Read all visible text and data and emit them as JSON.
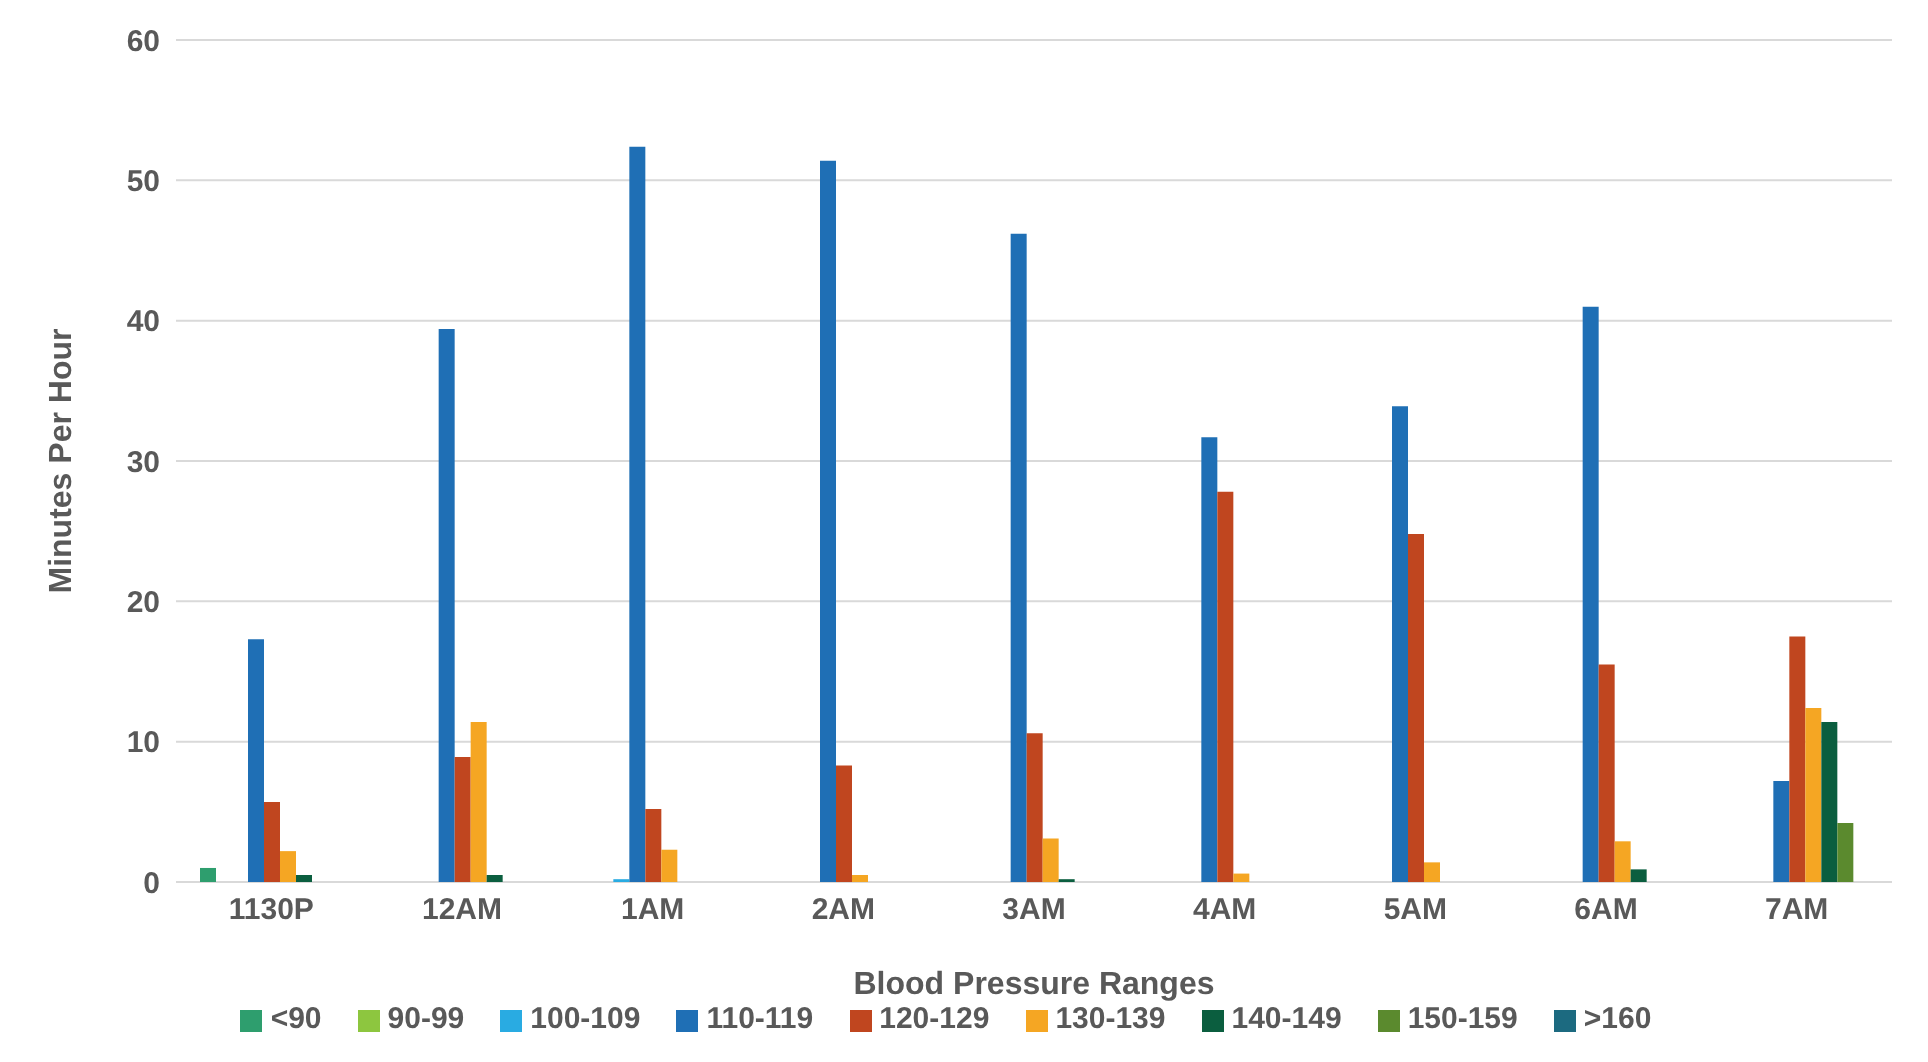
{
  "chart_data": {
    "type": "bar",
    "xlabel": "Blood Pressure Ranges",
    "ylabel": "Minutes Per Hour",
    "categories": [
      "1130P",
      "12AM",
      "1AM",
      "2AM",
      "3AM",
      "4AM",
      "5AM",
      "6AM",
      "7AM"
    ],
    "series": [
      {
        "name": "<90",
        "color": "#2e9e6e",
        "values": [
          1.0,
          0,
          0,
          0,
          0,
          0,
          0,
          0,
          0
        ]
      },
      {
        "name": "90-99",
        "color": "#8dc63f",
        "values": [
          0,
          0,
          0,
          0,
          0,
          0,
          0,
          0,
          0
        ]
      },
      {
        "name": "100-109",
        "color": "#29abe2",
        "values": [
          0,
          0,
          0.2,
          0,
          0,
          0,
          0,
          0,
          0
        ]
      },
      {
        "name": "110-119",
        "color": "#1f6fb5",
        "values": [
          17.3,
          39.4,
          52.4,
          51.4,
          46.2,
          31.7,
          33.9,
          41.0,
          7.2
        ]
      },
      {
        "name": "120-129",
        "color": "#c0461f",
        "values": [
          5.7,
          8.9,
          5.2,
          8.3,
          10.6,
          27.8,
          24.8,
          15.5,
          17.5
        ]
      },
      {
        "name": "130-139",
        "color": "#f5a623",
        "values": [
          2.2,
          11.4,
          2.3,
          0.5,
          3.1,
          0.6,
          1.4,
          2.9,
          12.4
        ]
      },
      {
        "name": "140-149",
        "color": "#0b5e3f",
        "values": [
          0.5,
          0.5,
          0,
          0,
          0.2,
          0,
          0,
          0.9,
          11.4
        ]
      },
      {
        "name": "150-159",
        "color": "#5b8a2e",
        "values": [
          0,
          0,
          0,
          0,
          0,
          0,
          0,
          0,
          4.2
        ]
      },
      {
        "name": ">160",
        "color": "#1c6a80",
        "values": [
          0,
          0,
          0,
          0,
          0,
          0,
          0,
          0,
          0
        ]
      }
    ],
    "ylim": [
      0,
      60
    ],
    "yticks": [
      0,
      10,
      20,
      30,
      40,
      50,
      60
    ],
    "grid": "y",
    "legend": "bottom"
  }
}
